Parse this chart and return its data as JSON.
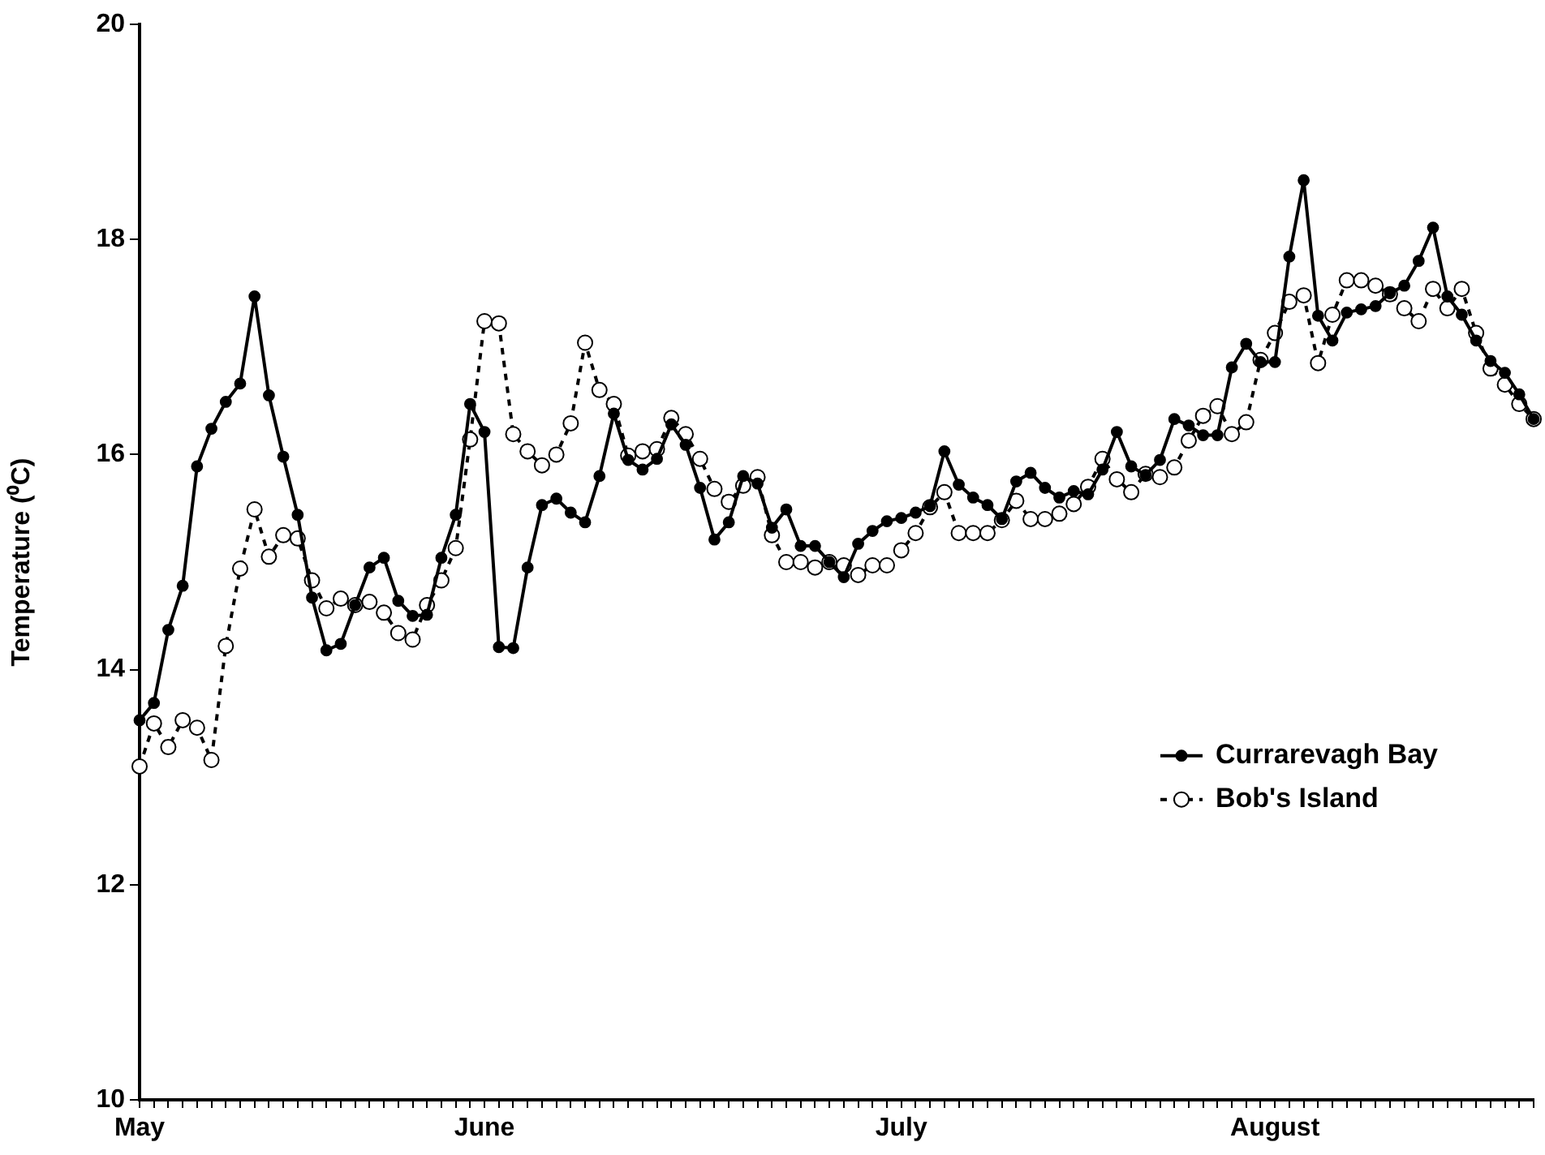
{
  "chart_data": {
    "type": "line",
    "ylabel": "Temperature (⁰C)",
    "categories": [
      "May",
      null,
      null,
      null,
      null,
      null,
      null,
      null,
      null,
      null,
      null,
      null,
      null,
      null,
      null,
      null,
      null,
      null,
      null,
      null,
      null,
      null,
      null,
      null,
      "June",
      null,
      null,
      null,
      null,
      null,
      null,
      null,
      null,
      null,
      null,
      null,
      null,
      null,
      null,
      null,
      null,
      null,
      null,
      null,
      null,
      null,
      null,
      null,
      null,
      null,
      null,
      null,
      null,
      "July",
      null,
      null,
      null,
      null,
      null,
      null,
      null,
      null,
      null,
      null,
      null,
      null,
      null,
      null,
      null,
      null,
      null,
      null,
      null,
      null,
      null,
      null,
      null,
      null,
      null,
      "August",
      null,
      null,
      null,
      null,
      null,
      null,
      null,
      null,
      null,
      null,
      null,
      null,
      null,
      null,
      null,
      null,
      null,
      null
    ],
    "series": [
      {
        "name": "Currarevagh Bay",
        "color": "#000000",
        "line_style": "solid",
        "values": [
          13.53,
          13.69,
          14.37,
          14.78,
          15.89,
          16.24,
          16.49,
          16.66,
          17.47,
          16.55,
          15.98,
          15.44,
          14.67,
          14.18,
          14.24,
          14.6,
          14.95,
          15.04,
          14.64,
          14.5,
          14.51,
          15.04,
          15.44,
          16.47,
          16.21,
          14.21,
          14.2,
          14.95,
          15.53,
          15.59,
          15.46,
          15.37,
          15.8,
          16.38,
          15.95,
          15.86,
          15.96,
          16.28,
          16.09,
          15.69,
          15.21,
          15.37,
          15.8,
          15.73,
          15.32,
          15.49,
          15.15,
          15.15,
          15.0,
          14.86,
          15.17,
          15.29,
          15.38,
          15.41,
          15.46,
          15.52,
          16.03,
          15.72,
          15.6,
          15.53,
          15.4,
          15.75,
          15.83,
          15.69,
          15.6,
          15.66,
          15.63,
          15.86,
          16.21,
          15.89,
          15.81,
          15.95,
          16.33,
          16.27,
          16.18,
          16.18,
          16.81,
          17.03,
          16.86,
          16.86,
          17.84,
          18.55,
          17.29,
          17.06,
          17.32,
          17.35,
          17.38,
          17.5,
          17.57,
          17.8,
          18.11,
          17.47,
          17.3,
          17.06,
          16.87,
          16.76,
          16.56,
          16.33
        ]
      },
      {
        "name": "Bob's Island",
        "color": "#000000",
        "line_style": "dashed",
        "values": [
          13.1,
          13.5,
          13.28,
          13.53,
          13.46,
          13.16,
          14.22,
          14.94,
          15.49,
          15.05,
          15.25,
          15.22,
          14.83,
          14.57,
          14.66,
          14.6,
          14.63,
          14.53,
          14.34,
          14.28,
          14.6,
          14.83,
          15.13,
          16.14,
          17.24,
          17.22,
          16.19,
          16.03,
          15.9,
          16.0,
          16.29,
          17.04,
          16.6,
          16.47,
          15.99,
          16.03,
          16.05,
          16.34,
          16.19,
          15.96,
          15.68,
          15.56,
          15.71,
          15.79,
          15.25,
          15.0,
          15.0,
          14.95,
          15.0,
          14.97,
          14.88,
          14.97,
          14.97,
          15.11,
          15.27,
          15.51,
          15.65,
          15.27,
          15.27,
          15.27,
          15.39,
          15.57,
          15.4,
          15.4,
          15.45,
          15.54,
          15.7,
          15.96,
          15.77,
          15.65,
          15.82,
          15.79,
          15.88,
          16.13,
          16.36,
          16.45,
          16.19,
          16.3,
          16.88,
          17.13,
          17.42,
          17.48,
          16.85,
          17.3,
          17.62,
          17.62,
          17.57,
          17.49,
          17.36,
          17.24,
          17.54,
          17.36,
          17.54,
          17.13,
          16.8,
          16.65,
          16.47,
          16.33
        ]
      }
    ],
    "ylim": [
      10,
      20
    ],
    "yticks": [
      10,
      12,
      14,
      16,
      18,
      20
    ],
    "legend": "right",
    "marker": "circle"
  }
}
